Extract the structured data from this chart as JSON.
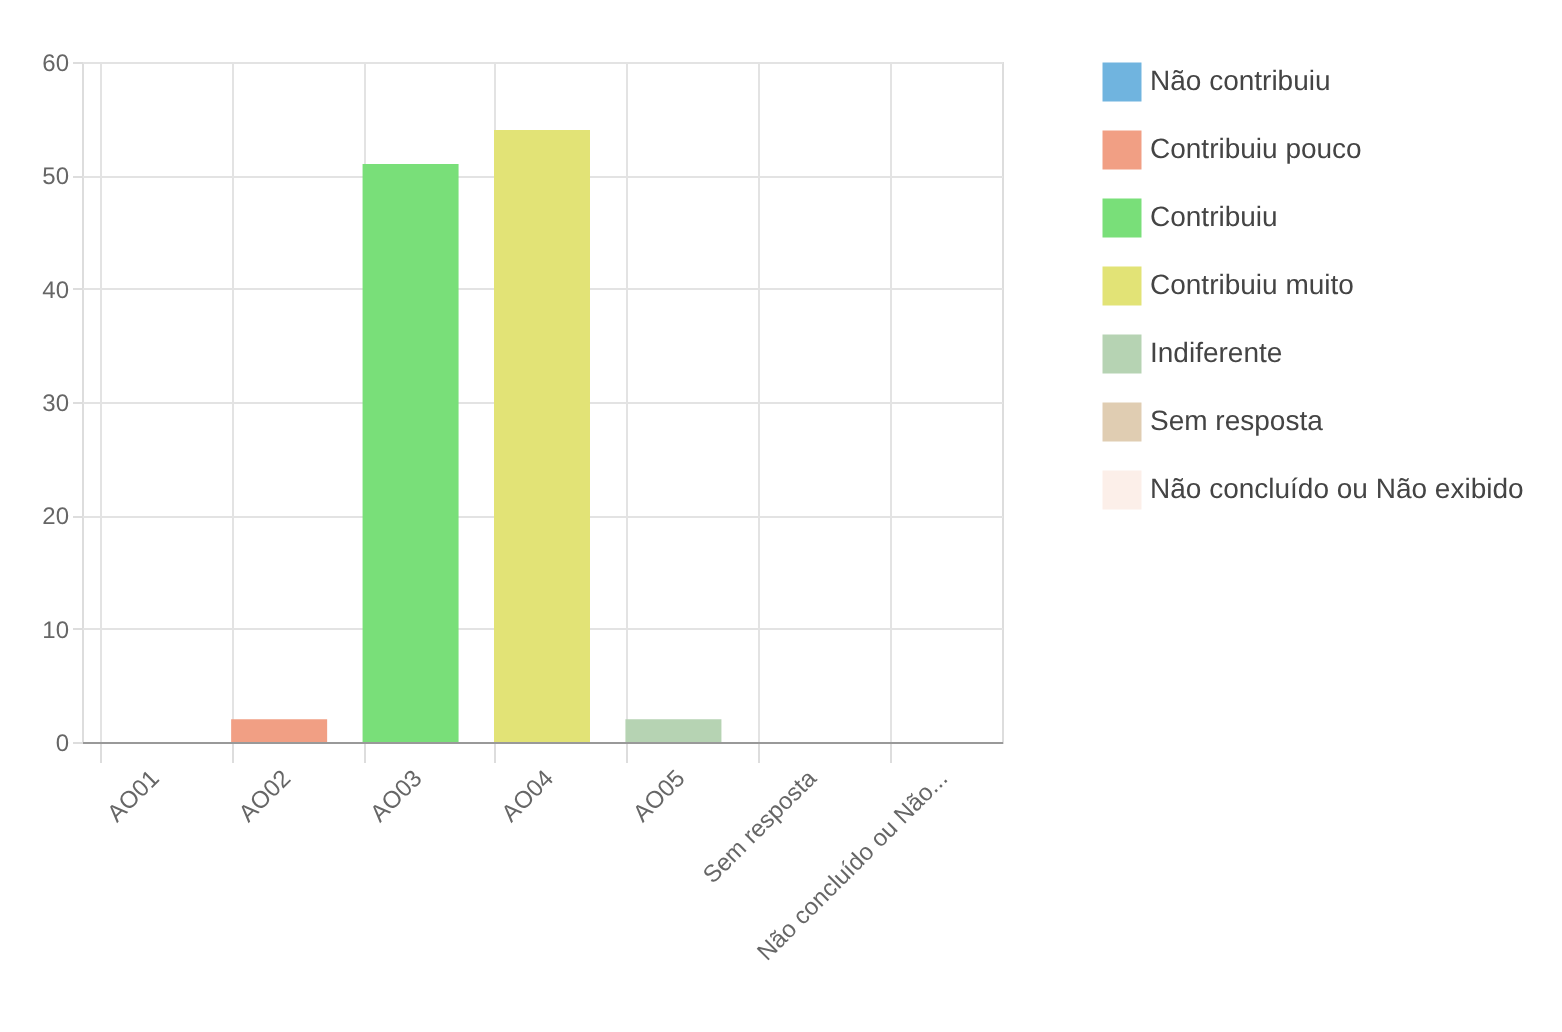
{
  "chart_data": {
    "type": "bar",
    "categories": [
      "AO01",
      "AO02",
      "AO03",
      "AO04",
      "AO05",
      "Sem resposta",
      "Não concluído ou Não..."
    ],
    "series": [
      {
        "name": "Não contribuiu",
        "color": "#70b4df",
        "values": [
          0,
          null,
          null,
          null,
          null,
          null,
          null
        ]
      },
      {
        "name": "Contribuiu pouco",
        "color": "#f19f84",
        "values": [
          null,
          2,
          null,
          null,
          null,
          null,
          null
        ]
      },
      {
        "name": "Contribuiu",
        "color": "#79df79",
        "values": [
          null,
          null,
          51,
          null,
          null,
          null,
          null
        ]
      },
      {
        "name": "Contribuiu muito",
        "color": "#e2e376",
        "values": [
          null,
          null,
          null,
          54,
          null,
          null,
          null
        ]
      },
      {
        "name": "Indiferente",
        "color": "#b6d3b3",
        "values": [
          null,
          null,
          null,
          null,
          2,
          null,
          null
        ]
      },
      {
        "name": "Sem resposta",
        "color": "#e0cdb2",
        "values": [
          null,
          null,
          null,
          null,
          null,
          0,
          null
        ]
      },
      {
        "name": "Não concluído ou Não exibido",
        "color": "#fcefe9",
        "values": [
          null,
          null,
          null,
          null,
          null,
          null,
          0
        ]
      }
    ],
    "ylim": [
      0,
      60
    ],
    "yticks": [
      0,
      10,
      20,
      30,
      40,
      50,
      60
    ],
    "grid": true,
    "legend": "right"
  }
}
